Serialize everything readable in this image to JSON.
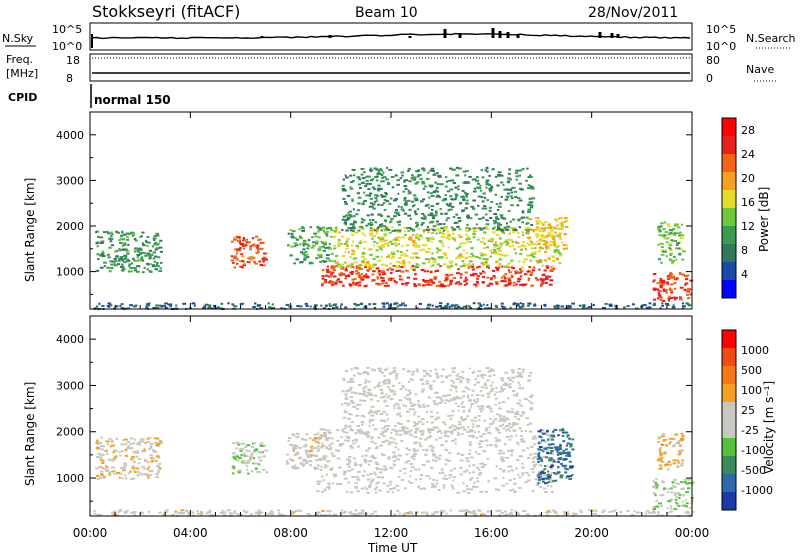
{
  "header": {
    "station": "Stokkseyri (fitACF)",
    "beam": "Beam 10",
    "date": "28/Nov/2011"
  },
  "strips": {
    "nsky_label": "N.Sky",
    "nsky_ticks": [
      "10^5",
      "10^0"
    ],
    "nsearch_label": "N.Search",
    "nsearch_ticks": [
      "10^5",
      "10^0"
    ],
    "freq_label_1": "Freq.",
    "freq_label_2": "[MHz]",
    "freq_ticks": [
      "18",
      "8"
    ],
    "nave_label": "Nave",
    "nave_ticks": [
      "80",
      "0"
    ],
    "cpid_label": "CPID",
    "cpid_value": "normal 150"
  },
  "colors": {
    "power_scale": [
      "#0000ff",
      "#1a4aa8",
      "#2f7a5a",
      "#3c9a52",
      "#6ec83c",
      "#e6dc28",
      "#f5a020",
      "#f56414",
      "#e8201a",
      "#ff0000"
    ],
    "velocity_scale": [
      "#1a3aa8",
      "#2f6aa8",
      "#3a8a5a",
      "#55c03a",
      "#c8c8c0",
      "#c8c8c0",
      "#f5a020",
      "#f57814",
      "#f04a14",
      "#ff0000"
    ]
  },
  "chart_data": [
    {
      "type": "heatmap",
      "name": "power",
      "ylabel": "Slant Range [km]",
      "ylim": [
        180,
        4500
      ],
      "yticks": [
        "1000",
        "2000",
        "3000",
        "4000"
      ],
      "xlim": [
        0,
        24
      ],
      "colorbar_label": "Power [dB]",
      "colorbar_ticks": [
        "4",
        "8",
        "12",
        "16",
        "20",
        "24",
        "28"
      ],
      "colorbar_range": [
        0,
        30
      ],
      "regions": [
        {
          "t0": 0.2,
          "t1": 2.8,
          "r0": 1000,
          "r1": 1900,
          "v": 10
        },
        {
          "t0": 5.6,
          "t1": 7.0,
          "r0": 1100,
          "r1": 1800,
          "v": 23
        },
        {
          "t0": 7.8,
          "t1": 9.6,
          "r0": 1200,
          "r1": 2000,
          "v": 11
        },
        {
          "t0": 9.2,
          "t1": 18.4,
          "r0": 700,
          "r1": 1150,
          "v": 25
        },
        {
          "t0": 9.6,
          "t1": 18.8,
          "r0": 1100,
          "r1": 2000,
          "v": 16
        },
        {
          "t0": 10.0,
          "t1": 17.6,
          "r0": 1900,
          "r1": 3300,
          "v": 9
        },
        {
          "t0": 17.4,
          "t1": 19.0,
          "r0": 1500,
          "r1": 2200,
          "v": 18
        },
        {
          "t0": 22.4,
          "t1": 24.0,
          "r0": 350,
          "r1": 1000,
          "v": 24
        },
        {
          "t0": 22.6,
          "t1": 23.6,
          "r0": 1200,
          "r1": 2100,
          "v": 13
        },
        {
          "t0": 0.0,
          "t1": 24.0,
          "r0": 200,
          "r1": 330,
          "v": 6
        }
      ]
    },
    {
      "type": "heatmap",
      "name": "velocity",
      "ylabel": "Slant Range [km]",
      "ylim": [
        180,
        4500
      ],
      "yticks": [
        "1000",
        "2000",
        "3000",
        "4000"
      ],
      "xlim": [
        0,
        24
      ],
      "xlabel": "Time UT",
      "xticks": [
        "00:00",
        "04:00",
        "08:00",
        "12:00",
        "16:00",
        "20:00",
        "00:00"
      ],
      "colorbar_label": "Velocity [m s⁻¹]",
      "colorbar_ticks": [
        "1000",
        "500",
        "100",
        "25",
        "-25",
        "-100",
        "-500",
        "-1000"
      ],
      "colorbar_range": [
        -1200,
        1200
      ],
      "regions": [
        {
          "t0": 0.2,
          "t1": 2.8,
          "r0": 1000,
          "r1": 1900,
          "v": 150
        },
        {
          "t0": 5.6,
          "t1": 7.0,
          "r0": 1100,
          "r1": 1800,
          "v": -200
        },
        {
          "t0": 7.8,
          "t1": 9.6,
          "r0": 1200,
          "r1": 2000,
          "v": 80
        },
        {
          "t0": 9.0,
          "t1": 18.4,
          "r0": 700,
          "r1": 2100,
          "v": 0
        },
        {
          "t0": 10.0,
          "t1": 17.6,
          "r0": 2000,
          "r1": 3400,
          "v": 0
        },
        {
          "t0": 17.8,
          "t1": 19.2,
          "r0": 900,
          "r1": 2100,
          "v": -800
        },
        {
          "t0": 22.4,
          "t1": 24.0,
          "r0": 350,
          "r1": 1000,
          "v": -150
        },
        {
          "t0": 22.6,
          "t1": 23.6,
          "r0": 1200,
          "r1": 2000,
          "v": 300
        },
        {
          "t0": 0.0,
          "t1": 24.0,
          "r0": 200,
          "r1": 330,
          "v": 50
        }
      ]
    }
  ]
}
